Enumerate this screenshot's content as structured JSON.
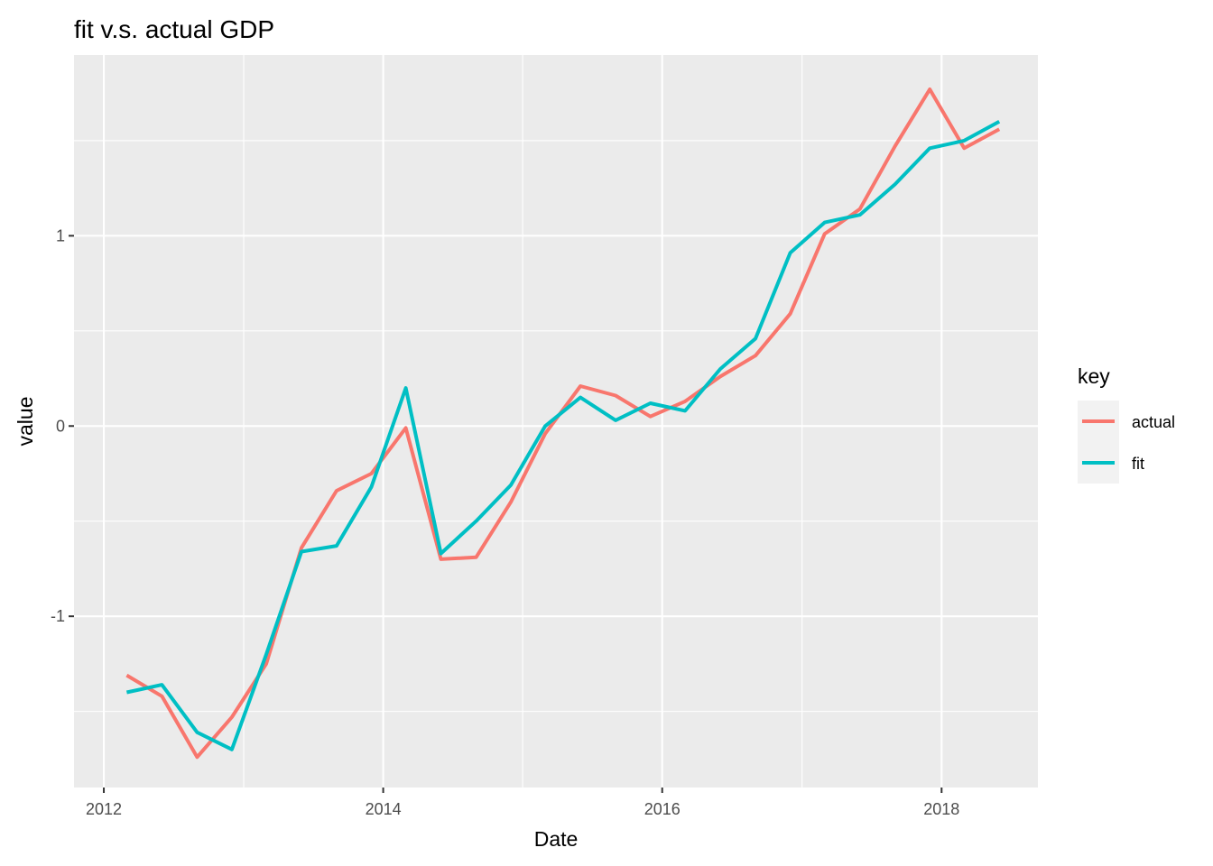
{
  "chart_data": {
    "type": "line",
    "title": "fit v.s. actual GDP",
    "xlabel": "Date",
    "ylabel": "value",
    "x_type": "date",
    "xlim": [
      "2011-10-15",
      "2018-09-10"
    ],
    "ylim": [
      -1.9,
      1.95
    ],
    "x_ticks": [
      {
        "date": "2012-01-01",
        "label": "2012"
      },
      {
        "date": "2014-01-01",
        "label": "2014"
      },
      {
        "date": "2016-01-01",
        "label": "2016"
      },
      {
        "date": "2018-01-01",
        "label": "2018"
      }
    ],
    "x_minor_ticks": [
      "2013-01-01",
      "2015-01-01",
      "2017-01-01"
    ],
    "y_ticks": [
      {
        "value": -1,
        "label": "-1"
      },
      {
        "value": 0,
        "label": "0"
      },
      {
        "value": 1,
        "label": "1"
      }
    ],
    "y_minor_ticks": [
      -1.5,
      -0.5,
      0.5,
      1.5
    ],
    "grid": true,
    "legend": {
      "title": "key",
      "position": "right"
    },
    "x": [
      "2012-03-01",
      "2012-06-01",
      "2012-09-01",
      "2012-12-01",
      "2013-03-01",
      "2013-06-01",
      "2013-09-01",
      "2013-12-01",
      "2014-03-01",
      "2014-06-01",
      "2014-09-01",
      "2014-12-01",
      "2015-03-01",
      "2015-06-01",
      "2015-09-01",
      "2015-12-01",
      "2016-03-01",
      "2016-06-01",
      "2016-09-01",
      "2016-12-01",
      "2017-03-01",
      "2017-06-01",
      "2017-09-01",
      "2017-12-01",
      "2018-03-01",
      "2018-06-01"
    ],
    "series": [
      {
        "name": "actual",
        "color": "#F8766D",
        "values": [
          -1.31,
          -1.42,
          -1.74,
          -1.53,
          -1.25,
          -0.64,
          -0.34,
          -0.25,
          -0.01,
          -0.7,
          -0.69,
          -0.4,
          -0.04,
          0.21,
          0.16,
          0.05,
          0.13,
          0.26,
          0.37,
          0.59,
          1.01,
          1.14,
          1.47,
          1.77,
          1.46,
          1.56
        ]
      },
      {
        "name": "fit",
        "color": "#00BFC4",
        "values": [
          -1.4,
          -1.36,
          -1.61,
          -1.7,
          -1.2,
          -0.66,
          -0.63,
          -0.32,
          0.2,
          -0.67,
          -0.5,
          -0.31,
          0.0,
          0.15,
          0.03,
          0.12,
          0.08,
          0.3,
          0.46,
          0.91,
          1.07,
          1.11,
          1.27,
          1.46,
          1.5,
          1.6
        ]
      }
    ]
  }
}
